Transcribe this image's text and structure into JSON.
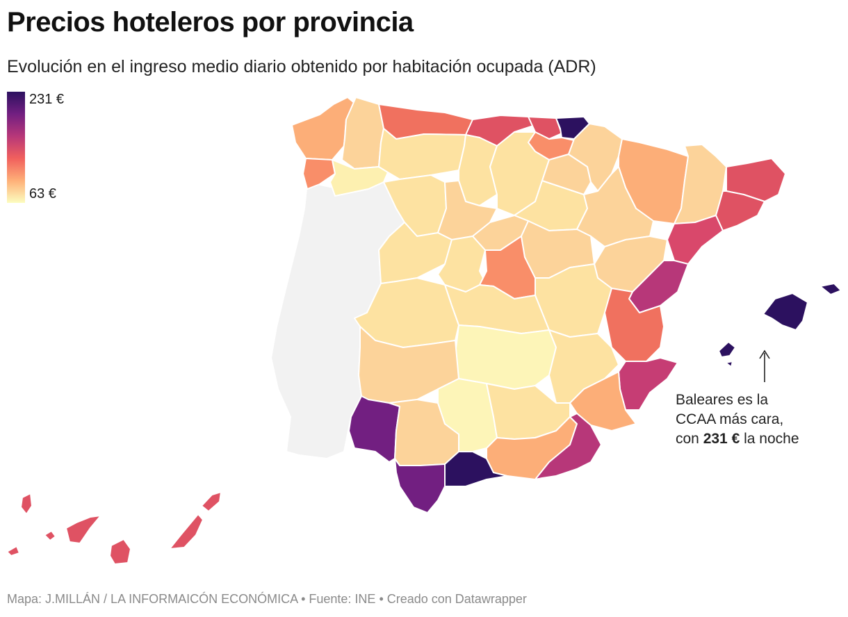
{
  "header": {
    "title": "Precios hoteleros por provincia",
    "subtitle": "Evolución en el ingreso medio diario obtenido por habitación ocupada (ADR)"
  },
  "legend": {
    "max_label": "231 €",
    "min_label": "63 €",
    "max_value": 231,
    "min_value": 63,
    "colors": [
      "#fcfdbf",
      "#feb078",
      "#f1605d",
      "#b73779",
      "#721f81",
      "#2c115f"
    ]
  },
  "annotation": {
    "line1": "Baleares es la",
    "line2": "CCAA más cara,",
    "line3_prefix": "con ",
    "line3_bold": "231 €",
    "line3_suffix": " la noche"
  },
  "footer": {
    "text": "Mapa: J.MILLÁN / LA INFORMAICÓN ECONÓMICA • Fuente: INE • Creado con Datawrapper"
  },
  "map_colors": {
    "portugal": "#f2f2f2",
    "border": "#ffffff",
    "lightest": "#fdf5b8",
    "light": "#fde2a1",
    "light_mid": "#fcd39a",
    "orange_light": "#fcae78",
    "orange": "#f98e69",
    "coral": "#f0715f",
    "red": "#df5263",
    "magenta": "#c63d74",
    "magenta_dark": "#b73779",
    "purple": "#721f81",
    "dark": "#2c115f"
  }
}
